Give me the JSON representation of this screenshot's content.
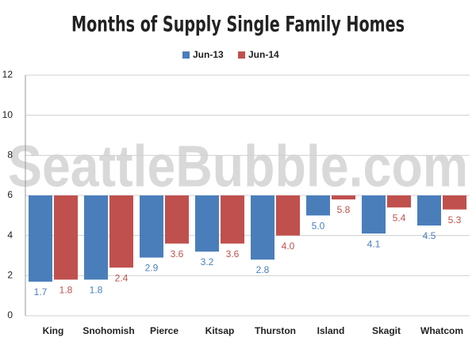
{
  "chart_data": {
    "type": "bar",
    "title": "Months of Supply Single Family Homes",
    "watermark": "SeattleBubble.com",
    "categories": [
      "King",
      "Snohomish",
      "Pierce",
      "Kitsap",
      "Thurston",
      "Island",
      "Skagit",
      "Whatcom"
    ],
    "series": [
      {
        "name": "Jun-13",
        "color": "#4a7ebb",
        "values": [
          1.7,
          1.8,
          2.9,
          3.2,
          2.8,
          5.0,
          4.1,
          4.5
        ],
        "value_labels": [
          "1.7",
          "1.8",
          "2.9",
          "3.2",
          "2.8",
          "5.0",
          "4.1",
          "4.5"
        ]
      },
      {
        "name": "Jun-14",
        "color": "#c0504d",
        "values": [
          1.8,
          2.4,
          3.6,
          3.6,
          4.0,
          5.8,
          5.4,
          5.3
        ],
        "value_labels": [
          "1.8",
          "2.4",
          "3.6",
          "3.6",
          "4.0",
          "5.8",
          "5.4",
          "5.3"
        ]
      }
    ],
    "baseline": 6,
    "ylim": [
      0,
      12
    ],
    "yticks": [
      0,
      2,
      4,
      6,
      8,
      10,
      12
    ],
    "grid": true,
    "legend": "top"
  }
}
